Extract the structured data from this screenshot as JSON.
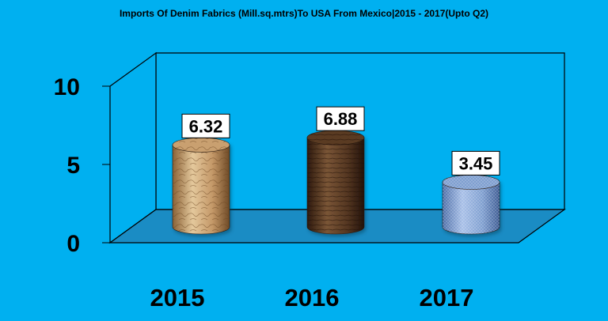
{
  "chart_data": {
    "type": "bar",
    "title": "Imports Of Denim Fabrics (Mill.sq.mtrs)To USA From Mexico|2015 - 2017(Upto Q2)",
    "categories": [
      "2015",
      "2016",
      "2017"
    ],
    "values": [
      6.32,
      6.88,
      3.45
    ],
    "value_labels": [
      "6.32",
      "6.88",
      "3.45"
    ],
    "y_ticks": [
      "0",
      "5",
      "10"
    ],
    "ylim": [
      0,
      10
    ],
    "grid": false,
    "legend": "none",
    "style": "3d-cylinder"
  },
  "colors": {
    "background": "#00b0f0",
    "bar_2015": "#c9a070",
    "bar_2016": "#5a3a22",
    "bar_2017": "#7f9fd0",
    "label_box": "#ffffff"
  }
}
